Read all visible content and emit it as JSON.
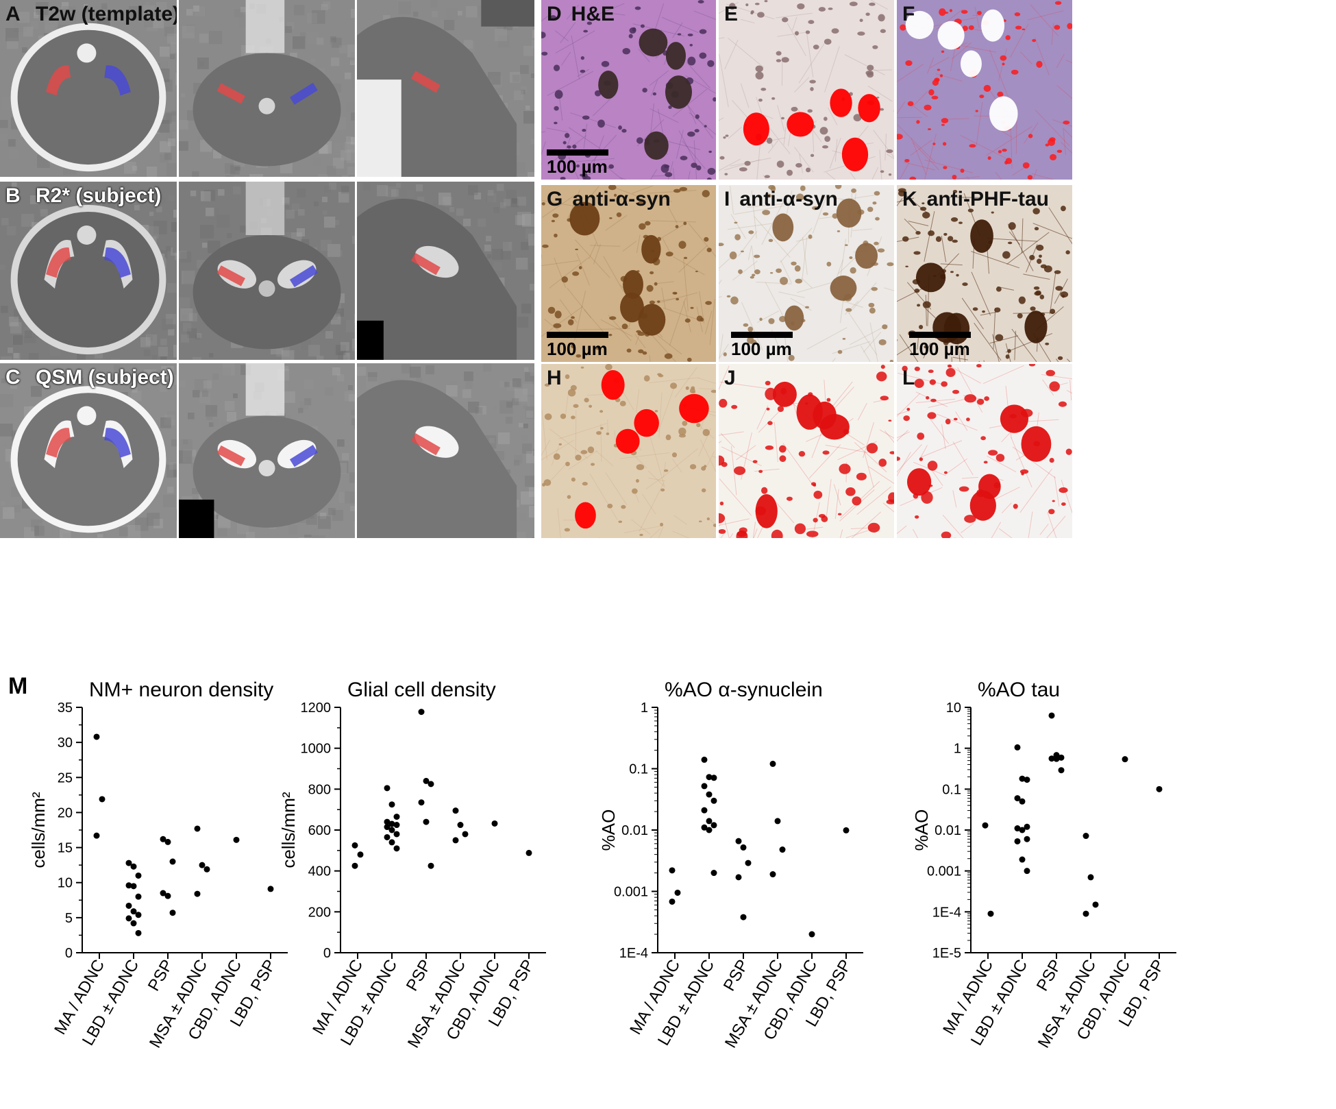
{
  "figure": {
    "panel_m_letter": "M",
    "mri_rows": [
      {
        "letter": "A",
        "caption": "T2w (template)",
        "theme": "template"
      },
      {
        "letter": "B",
        "caption": "R2* (subject)",
        "theme": "r2"
      },
      {
        "letter": "C",
        "caption": "QSM (subject)",
        "theme": "qsm"
      }
    ],
    "histology": [
      {
        "letter": "D",
        "caption": "H&E",
        "stain": "he",
        "scale": "100 µm"
      },
      {
        "letter": "E",
        "caption": "",
        "stain": "he-mask",
        "scale": ""
      },
      {
        "letter": "F",
        "caption": "",
        "stain": "he-glia",
        "scale": ""
      },
      {
        "letter": "G",
        "caption": "anti-α-syn",
        "stain": "dab",
        "scale": "100 µm"
      },
      {
        "letter": "I",
        "caption": "anti-α-syn",
        "stain": "dab-light",
        "scale": "100 µm"
      },
      {
        "letter": "K",
        "caption": "anti-PHF-tau",
        "stain": "tau",
        "scale": "100 µm"
      },
      {
        "letter": "H",
        "caption": "",
        "stain": "dab-mask",
        "scale": ""
      },
      {
        "letter": "J",
        "caption": "",
        "stain": "syn-mask",
        "scale": ""
      },
      {
        "letter": "L",
        "caption": "",
        "stain": "tau-mask",
        "scale": ""
      }
    ]
  },
  "chart_data": [
    {
      "type": "scatter",
      "title": "NM+ neuron density",
      "ylabel": "cells/mm²",
      "yscale": "linear",
      "ylim": [
        0,
        35
      ],
      "yticks": [
        0,
        5,
        10,
        15,
        20,
        25,
        30,
        35
      ],
      "ytick_labels": [
        "0",
        "5",
        "10",
        "15",
        "20",
        "25",
        "30",
        "35"
      ],
      "categories": [
        "MA / ADNC",
        "LBD ± ADNC",
        "PSP",
        "MSA ± ADNC",
        "CBD, ADNC",
        "LBD, PSP"
      ],
      "points": [
        [
          30.8,
          21.9,
          16.7
        ],
        [
          12.8,
          12.3,
          11.0,
          9.6,
          9.5,
          8.0,
          6.7,
          5.9,
          5.4,
          4.9,
          4.2,
          2.8
        ],
        [
          16.2,
          15.8,
          13.0,
          8.5,
          8.1,
          5.7
        ],
        [
          17.7,
          12.5,
          11.9,
          8.4
        ],
        [
          16.1
        ],
        [
          9.1
        ]
      ]
    },
    {
      "type": "scatter",
      "title": "Glial cell density",
      "ylabel": "cells/mm²",
      "yscale": "linear",
      "ylim": [
        0,
        1200
      ],
      "yticks": [
        0,
        200,
        400,
        600,
        800,
        1000,
        1200
      ],
      "ytick_labels": [
        "0",
        "200",
        "400",
        "600",
        "800",
        "1000",
        "1200"
      ],
      "categories": [
        "MA / ADNC",
        "LBD ± ADNC",
        "PSP",
        "MSA ± ADNC",
        "CBD, ADNC",
        "LBD, PSP"
      ],
      "points": [
        [
          525,
          480,
          425
        ],
        [
          805,
          725,
          665,
          640,
          630,
          625,
          615,
          600,
          580,
          565,
          540,
          510
        ],
        [
          1178,
          840,
          825,
          735,
          640,
          425
        ],
        [
          695,
          625,
          580,
          550
        ],
        [
          632
        ],
        [
          488
        ]
      ]
    },
    {
      "type": "scatter",
      "title": "%AO α-synuclein",
      "ylabel": "%AO",
      "yscale": "log",
      "ylim": [
        0.0001,
        1
      ],
      "yticks": [
        0.0001,
        0.001,
        0.01,
        0.1,
        1
      ],
      "ytick_labels": [
        "1E-4",
        "0.001",
        "0.01",
        "0.1",
        "1"
      ],
      "categories": [
        "MA / ADNC",
        "LBD ± ADNC",
        "PSP",
        "MSA ± ADNC",
        "CBD, ADNC",
        "LBD, PSP"
      ],
      "points": [
        [
          0.0022,
          0.00095,
          0.00068
        ],
        [
          0.14,
          0.073,
          0.071,
          0.052,
          0.038,
          0.03,
          0.021,
          0.014,
          0.012,
          0.011,
          0.01,
          0.002
        ],
        [
          0.0066,
          0.0052,
          0.0029,
          0.0017,
          0.00038
        ],
        [
          0.12,
          0.014,
          0.0048,
          0.0019
        ],
        [
          0.0002
        ],
        [
          0.0099
        ]
      ]
    },
    {
      "type": "scatter",
      "title": "%AO tau",
      "ylabel": "%AO",
      "yscale": "log",
      "ylim": [
        1e-05,
        10
      ],
      "yticks": [
        1e-05,
        0.0001,
        0.001,
        0.01,
        0.1,
        1,
        10
      ],
      "ytick_labels": [
        "1E-5",
        "1E-4",
        "0.001",
        "0.01",
        "0.1",
        "1",
        "10"
      ],
      "categories": [
        "MA / ADNC",
        "LBD ± ADNC",
        "PSP",
        "MSA ± ADNC",
        "CBD, ADNC",
        "LBD, PSP"
      ],
      "points": [
        [
          0.013,
          9e-05
        ],
        [
          1.05,
          0.18,
          0.17,
          0.06,
          0.05,
          0.012,
          0.011,
          0.01,
          0.006,
          0.0053,
          0.0019,
          0.001
        ],
        [
          6.3,
          0.68,
          0.59,
          0.56,
          0.55,
          0.29
        ],
        [
          0.0072,
          0.0007,
          0.00015,
          9e-05
        ],
        [
          0.54
        ],
        [
          0.1
        ]
      ]
    }
  ]
}
